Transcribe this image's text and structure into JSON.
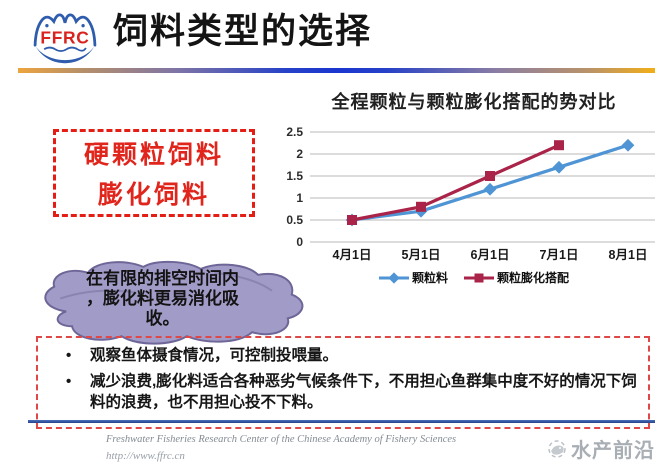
{
  "header": {
    "logo_text": "FFRC",
    "title": "饲料类型的选择"
  },
  "feed_types_box": {
    "line1": "硬颗粒饲料",
    "line2": "膨化饲料"
  },
  "cloud_note": {
    "lines": [
      "在有限的排空时间内",
      "，膨化料更易消化吸",
      "收。"
    ]
  },
  "bullet_box": {
    "items": [
      "观察鱼体摄食情况，可控制投喂量。",
      "减少浪费,膨化料适合各种恶劣气候条件下，不用担心鱼群集中度不好的情况下饲料的浪费，也不用担心投不下料。"
    ]
  },
  "footer": {
    "org": "Freshwater Fisheries Research Center of the Chinese Academy of Fishery Sciences",
    "url": "http://www.ffrc.cn",
    "watermark": "水产前沿"
  },
  "chart_data": {
    "type": "line",
    "title": "全程颗粒与颗粒膨化搭配的势对比",
    "categories": [
      "4月1日",
      "5月1日",
      "6月1日",
      "7月1日",
      "8月1日"
    ],
    "series": [
      {
        "name": "颗粒料",
        "color": "#4f94d4",
        "marker": "diamond",
        "values": [
          0.5,
          0.7,
          1.2,
          1.7,
          2.2
        ]
      },
      {
        "name": "颗粒膨化搭配",
        "color": "#aa2349",
        "marker": "square",
        "values": [
          0.5,
          0.8,
          1.5,
          2.2,
          null
        ]
      }
    ],
    "xlabel": "",
    "ylabel": "",
    "ylim": [
      0,
      2.5
    ],
    "ytick_step": 0.5,
    "grid": true,
    "legend_position": "bottom"
  },
  "colors": {
    "accent_red": "#e41d15",
    "chart_blue": "#4f94d4",
    "chart_red": "#aa2349",
    "rule_blue": "#32539f"
  }
}
